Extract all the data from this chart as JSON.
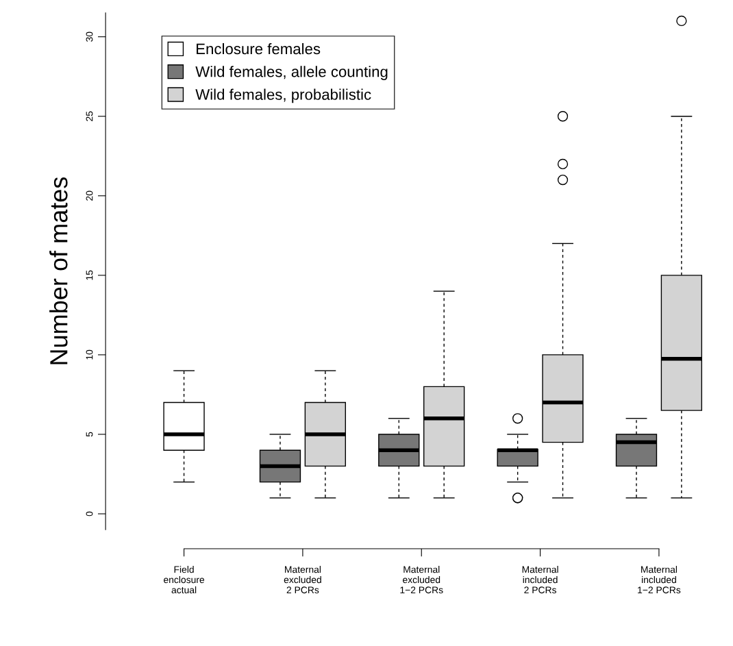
{
  "chart_data": {
    "type": "box",
    "ylabel": "Number of mates",
    "categories": [
      "Field\nenclosure\nactual",
      "Maternal\nexcluded\n2 PCRs",
      "Maternal\nexcluded\n1−2 PCRs",
      "Maternal\nincluded\n2 PCRs",
      "Maternal\nincluded\n1−2 PCRs"
    ],
    "series": [
      {
        "name": "Enclosure females",
        "color": "#ffffff",
        "boxes": [
          {
            "low": 2,
            "q1": 4,
            "median": 5,
            "q3": 7,
            "high": 9
          },
          null,
          null,
          null,
          null
        ]
      },
      {
        "name": "Wild females, allele counting",
        "color": "#777777",
        "boxes": [
          null,
          {
            "low": 1,
            "q1": 2,
            "median": 3,
            "q3": 4,
            "high": 5
          },
          {
            "low": 1,
            "q1": 3,
            "median": 4,
            "q3": 5,
            "high": 6
          },
          {
            "low": 2,
            "q1": 3,
            "median": 4,
            "q3": 4.05,
            "high": 5,
            "outliers": [
              6,
              1,
              1
            ]
          },
          {
            "low": 1,
            "q1": 3,
            "median": 4.5,
            "q3": 5,
            "high": 6
          }
        ]
      },
      {
        "name": "Wild females, probabilistic",
        "color": "#d3d3d3",
        "boxes": [
          null,
          {
            "low": 1,
            "q1": 3,
            "median": 5,
            "q3": 7,
            "high": 9
          },
          {
            "low": 1,
            "q1": 3,
            "median": 6,
            "q3": 8,
            "high": 14
          },
          {
            "low": 1,
            "q1": 4.5,
            "median": 7,
            "q3": 10,
            "high": 17,
            "outliers": [
              21,
              22,
              25
            ]
          },
          {
            "low": 1,
            "q1": 6.5,
            "median": 9.75,
            "q3": 15,
            "high": 25,
            "outliers": [
              31
            ]
          }
        ]
      }
    ],
    "ylim": [
      -1,
      31.5
    ],
    "yticks": [
      0,
      5,
      10,
      15,
      20,
      25,
      30
    ],
    "grid": false,
    "legend": "top left"
  }
}
